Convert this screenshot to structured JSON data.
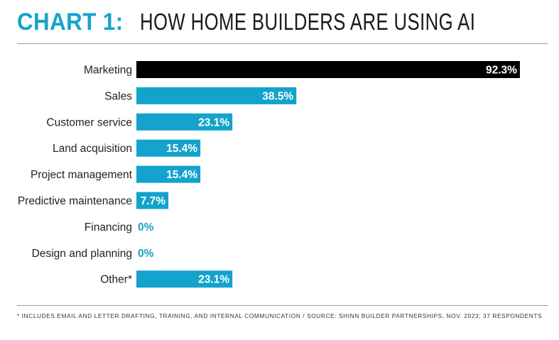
{
  "header": {
    "title_lead": "CHART 1:",
    "title_rest": "HOW HOME BUILDERS ARE USING AI"
  },
  "footnote": "* INCLUDES EMAIL AND LETTER DRAFTING, TRAINING, AND INTERNAL COMMUNICATION  /  SOURCE: SHINN BUILDER PARTNERSHIPS, NOV. 2023; 37 RESPONDENTS",
  "colors": {
    "accent": "#13a3cc",
    "highlight": "#000000",
    "bar_text": "#ffffff"
  },
  "chart_data": {
    "type": "bar",
    "orientation": "horizontal",
    "title": "HOW HOME BUILDERS ARE USING AI",
    "xlabel": "",
    "ylabel": "",
    "xlim": [
      0,
      100
    ],
    "grid": false,
    "categories": [
      "Marketing",
      "Sales",
      "Customer service",
      "Land acquisition",
      "Project management",
      "Predictive maintenance",
      "Financing",
      "Design and planning",
      "Other*"
    ],
    "values": [
      92.3,
      38.5,
      23.1,
      15.4,
      15.4,
      7.7,
      0,
      0,
      23.1
    ],
    "labels": [
      "92.3%",
      "38.5%",
      "23.1%",
      "15.4%",
      "15.4%",
      "7.7%",
      "0%",
      "0%",
      "23.1%"
    ],
    "highlighted": [
      "Marketing"
    ]
  }
}
